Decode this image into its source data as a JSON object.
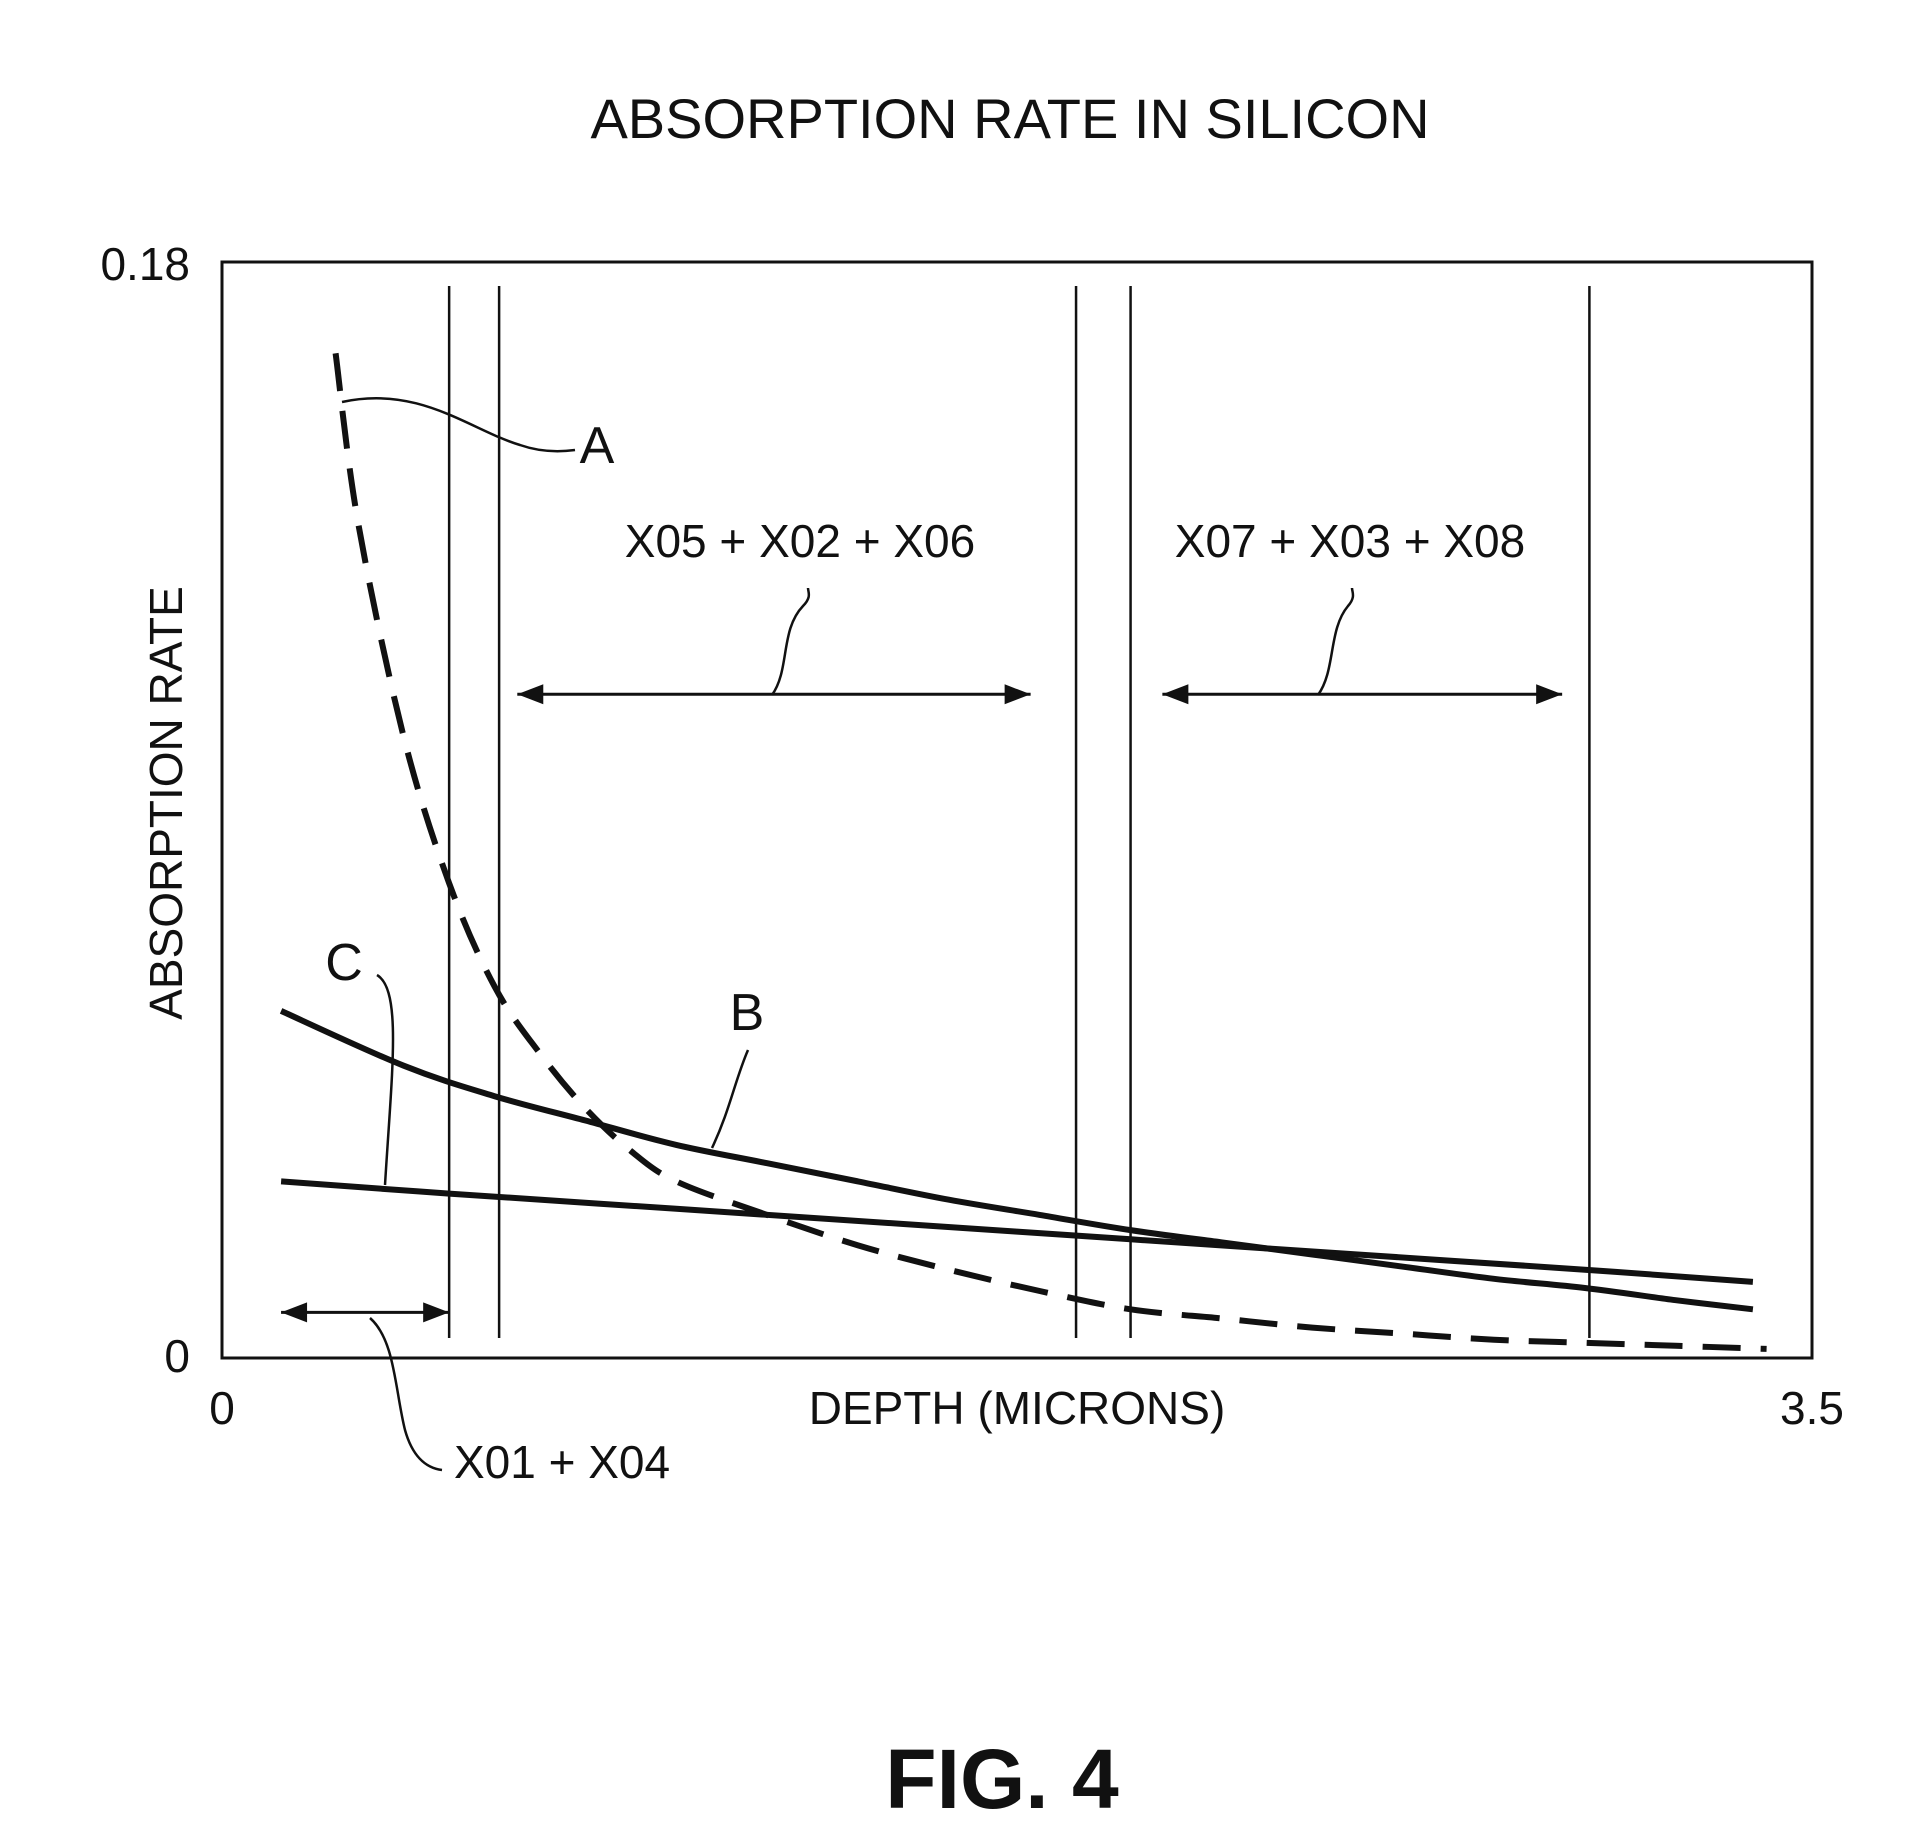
{
  "figure_label": "FIG. 4",
  "chart_data": {
    "type": "line",
    "title": "ABSORPTION RATE IN SILICON",
    "xlabel": "DEPTH (MICRONS)",
    "ylabel": "ABSORPTION RATE",
    "xlim": [
      0,
      3.5
    ],
    "ylim": [
      0,
      0.18
    ],
    "x_tick_labels": [
      "0",
      "3.5"
    ],
    "y_tick_labels": [
      "0",
      "0.18"
    ],
    "grid": false,
    "legend": "none",
    "series": [
      {
        "name": "A",
        "style": "dashed",
        "x": [
          0.25,
          0.3,
          0.4,
          0.5,
          0.6,
          0.7,
          0.8,
          0.9,
          1.0,
          1.2,
          1.4,
          1.6,
          1.8,
          2.0,
          2.2,
          2.4,
          2.6,
          2.8,
          3.0,
          3.2,
          3.4
        ],
        "y": [
          0.165,
          0.137,
          0.102,
          0.078,
          0.061,
          0.05,
          0.041,
          0.034,
          0.029,
          0.0235,
          0.0185,
          0.0145,
          0.011,
          0.008,
          0.0065,
          0.005,
          0.004,
          0.003,
          0.0025,
          0.002,
          0.0015
        ]
      },
      {
        "name": "B",
        "style": "solid",
        "x": [
          0.13,
          0.4,
          0.6,
          0.8,
          1.0,
          1.2,
          1.4,
          1.6,
          1.8,
          2.0,
          2.2,
          2.4,
          2.6,
          2.8,
          3.0,
          3.2,
          3.37
        ],
        "y": [
          0.057,
          0.048,
          0.043,
          0.039,
          0.035,
          0.032,
          0.029,
          0.026,
          0.0235,
          0.021,
          0.019,
          0.017,
          0.015,
          0.013,
          0.0115,
          0.0095,
          0.008
        ]
      },
      {
        "name": "C",
        "style": "solid",
        "x": [
          0.13,
          0.5,
          1.0,
          1.5,
          2.0,
          2.5,
          3.0,
          3.37
        ],
        "y": [
          0.029,
          0.027,
          0.0245,
          0.022,
          0.0195,
          0.017,
          0.0145,
          0.0125
        ]
      }
    ],
    "vertical_lines_x": [
      0.5,
      0.61,
      1.88,
      2.0,
      3.01
    ],
    "annotations": [
      {
        "text": "X01 + X04",
        "from_x": 0.13,
        "to_x": 0.5,
        "at_y": 0.0075
      },
      {
        "text": "X05 + X02 + X06",
        "from_x": 0.65,
        "to_x": 1.78,
        "at_y": 0.109
      },
      {
        "text": "X07 + X03 + X08",
        "from_x": 2.07,
        "to_x": 2.95,
        "at_y": 0.109
      }
    ]
  }
}
